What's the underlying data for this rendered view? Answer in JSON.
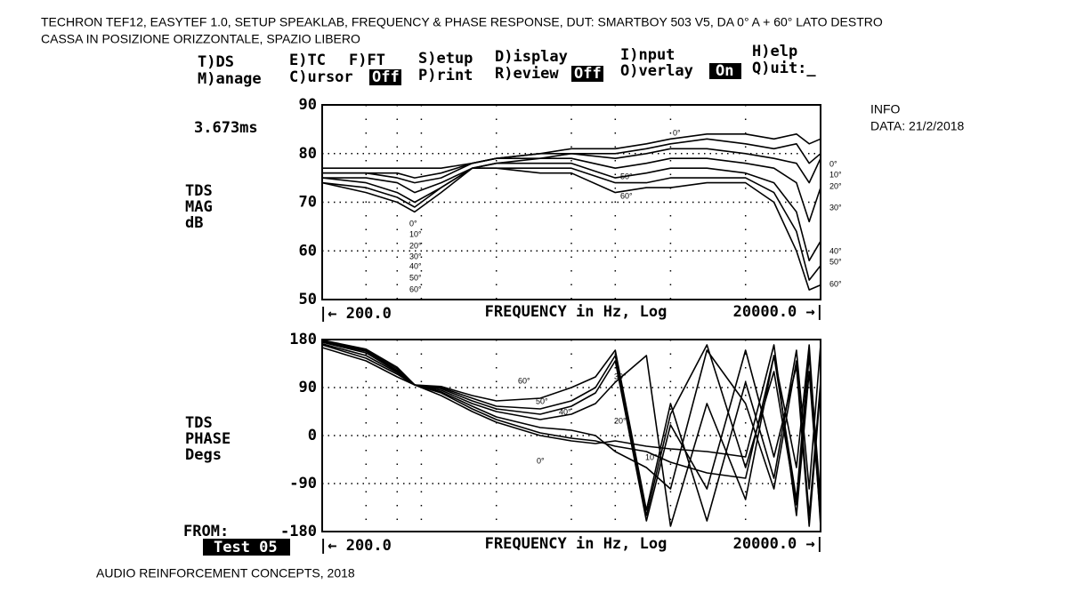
{
  "header": {
    "line1": "TECHRON TEF12, EASYTEF 1.0, SETUP SPEAKLAB, FREQUENCY & PHASE RESPONSE, DUT: SMARTBOY 503 V5, DA 0° A + 60° LATO DESTRO",
    "line2": "CASSA IN POSIZIONE ORIZZONTALE, SPAZIO LIBERO"
  },
  "menu": {
    "tds": "T)DS",
    "manage": "M)anage",
    "etc": "E)TC",
    "fft": "F)FT",
    "cursor": "C)ursor",
    "cursor_state": "Off",
    "setup": "S)etup",
    "print": "P)rint",
    "display": "D)isplay",
    "review": "R)eview",
    "review_state": "Off",
    "input": "I)nput",
    "overlay": "O)verlay",
    "overlay_state": "On",
    "help": "H)elp",
    "quit": "Q)uit:_"
  },
  "info": {
    "title": "INFO",
    "date": "DATA: 21/2/2018"
  },
  "cursor_time": "3.673ms",
  "from": {
    "label": "FROM:",
    "file": "Test 05"
  },
  "footer": "AUDIO REINFORCEMENT CONCEPTS, 2018",
  "plots": [
    {
      "type": "line",
      "ylabel": [
        "TDS",
        "MAG",
        "dB"
      ],
      "xlabel": "FREQUENCY in Hz, Log",
      "xstart": "|← 200.0",
      "xend": "20000.0 →|",
      "log_x": true,
      "xlim": [
        200,
        20000
      ],
      "ylim": [
        50,
        90
      ],
      "yticks": [
        90,
        80,
        70,
        60,
        50
      ],
      "xgrid": [
        300,
        400,
        500,
        1000,
        2000,
        3000,
        5000,
        10000
      ],
      "x": [
        200,
        300,
        400,
        470,
        600,
        800,
        1000,
        1500,
        2000,
        3000,
        4000,
        5000,
        7000,
        10000,
        13000,
        16000,
        18000,
        20000
      ],
      "series": [
        {
          "name": "0°",
          "color": "#000",
          "values": [
            77,
            77,
            77,
            77,
            77,
            78,
            79,
            80,
            81,
            81,
            82,
            83,
            84,
            84,
            83,
            84,
            82,
            83
          ]
        },
        {
          "name": "10°",
          "color": "#000",
          "values": [
            76,
            76,
            76,
            75,
            76,
            78,
            79,
            80,
            80,
            80,
            81,
            82,
            83,
            82,
            81,
            82,
            78,
            80
          ]
        },
        {
          "name": "20°",
          "color": "#000",
          "values": [
            76,
            76,
            75,
            74,
            75,
            78,
            79,
            79,
            80,
            79,
            80,
            81,
            81,
            80,
            79,
            78,
            74,
            79
          ]
        },
        {
          "name": "30°",
          "color": "#000",
          "values": [
            75,
            75,
            74,
            72,
            74,
            77,
            78,
            79,
            79,
            77,
            78,
            79,
            79,
            78,
            77,
            74,
            66,
            73
          ]
        },
        {
          "name": "40°",
          "color": "#000",
          "values": [
            75,
            74,
            72,
            70,
            73,
            77,
            78,
            78,
            78,
            75,
            76,
            77,
            77,
            76,
            74,
            68,
            58,
            62
          ]
        },
        {
          "name": "50°",
          "color": "#000",
          "values": [
            74,
            73,
            71,
            69,
            73,
            77,
            77,
            77,
            77,
            74,
            74,
            75,
            75,
            75,
            72,
            64,
            54,
            57
          ]
        },
        {
          "name": "60°",
          "color": "#000",
          "values": [
            74,
            72,
            70,
            68,
            72,
            77,
            77,
            76,
            76,
            72,
            73,
            73,
            74,
            74,
            70,
            60,
            52,
            53
          ]
        }
      ],
      "annotations": [
        "0°",
        "10°",
        "20°",
        "30°",
        "40°",
        "50°",
        "60°",
        "0°",
        "10°",
        "20°",
        "30°",
        "40°",
        "50°",
        "60°",
        "0°",
        "50°",
        "60°"
      ]
    },
    {
      "type": "line",
      "ylabel": [
        "TDS",
        "PHASE",
        "Degs"
      ],
      "xlabel": "FREQUENCY in Hz, Log",
      "xstart": "|← 200.0",
      "xend": "20000.0 →|",
      "log_x": true,
      "xlim": [
        200,
        20000
      ],
      "ylim": [
        -180,
        180
      ],
      "yticks": [
        180,
        90,
        0,
        -90,
        -180
      ],
      "xgrid": [
        300,
        400,
        500,
        1000,
        2000,
        3000,
        5000,
        10000
      ],
      "x": [
        200,
        300,
        400,
        470,
        600,
        800,
        1000,
        1500,
        2000,
        2500,
        3000,
        4000,
        5000,
        7000,
        10000,
        13000,
        16000,
        18000,
        20000
      ],
      "series": [
        {
          "name": "0°",
          "color": "#000",
          "values": [
            165,
            140,
            110,
            95,
            75,
            45,
            25,
            0,
            -10,
            -15,
            -10,
            -20,
            -25,
            -30,
            -40,
            170,
            -150,
            120,
            -160
          ]
        },
        {
          "name": "10°",
          "color": "#000",
          "values": [
            170,
            145,
            115,
            95,
            80,
            50,
            30,
            5,
            -5,
            -10,
            -20,
            -30,
            -50,
            -70,
            -80,
            150,
            -120,
            160,
            -170
          ]
        },
        {
          "name": "20°",
          "color": "#000",
          "values": [
            172,
            150,
            118,
            95,
            82,
            55,
            35,
            15,
            10,
            0,
            -30,
            -60,
            -100,
            160,
            60,
            -100,
            140,
            -150,
            100
          ]
        },
        {
          "name": "30°",
          "color": "#000",
          "values": [
            175,
            155,
            120,
            95,
            85,
            60,
            45,
            30,
            40,
            60,
            100,
            150,
            -170,
            60,
            -120,
            150,
            -60,
            170,
            -150
          ]
        },
        {
          "name": "40°",
          "color": "#000",
          "values": [
            176,
            158,
            122,
            95,
            88,
            65,
            50,
            40,
            55,
            80,
            140,
            -160,
            20,
            -100,
            160,
            -40,
            130,
            -170,
            90
          ]
        },
        {
          "name": "50°",
          "color": "#000",
          "values": [
            178,
            160,
            125,
            95,
            90,
            70,
            55,
            50,
            65,
            90,
            150,
            -150,
            40,
            170,
            -60,
            120,
            -130,
            150,
            -120
          ]
        },
        {
          "name": "60°",
          "color": "#000",
          "values": [
            179,
            162,
            128,
            95,
            92,
            75,
            65,
            70,
            90,
            110,
            160,
            -140,
            60,
            -160,
            100,
            -80,
            160,
            -100,
            170
          ]
        }
      ],
      "annotations": [
        "60°",
        "50°",
        "40°",
        "30°",
        "20°",
        "10°",
        "0°"
      ]
    }
  ]
}
